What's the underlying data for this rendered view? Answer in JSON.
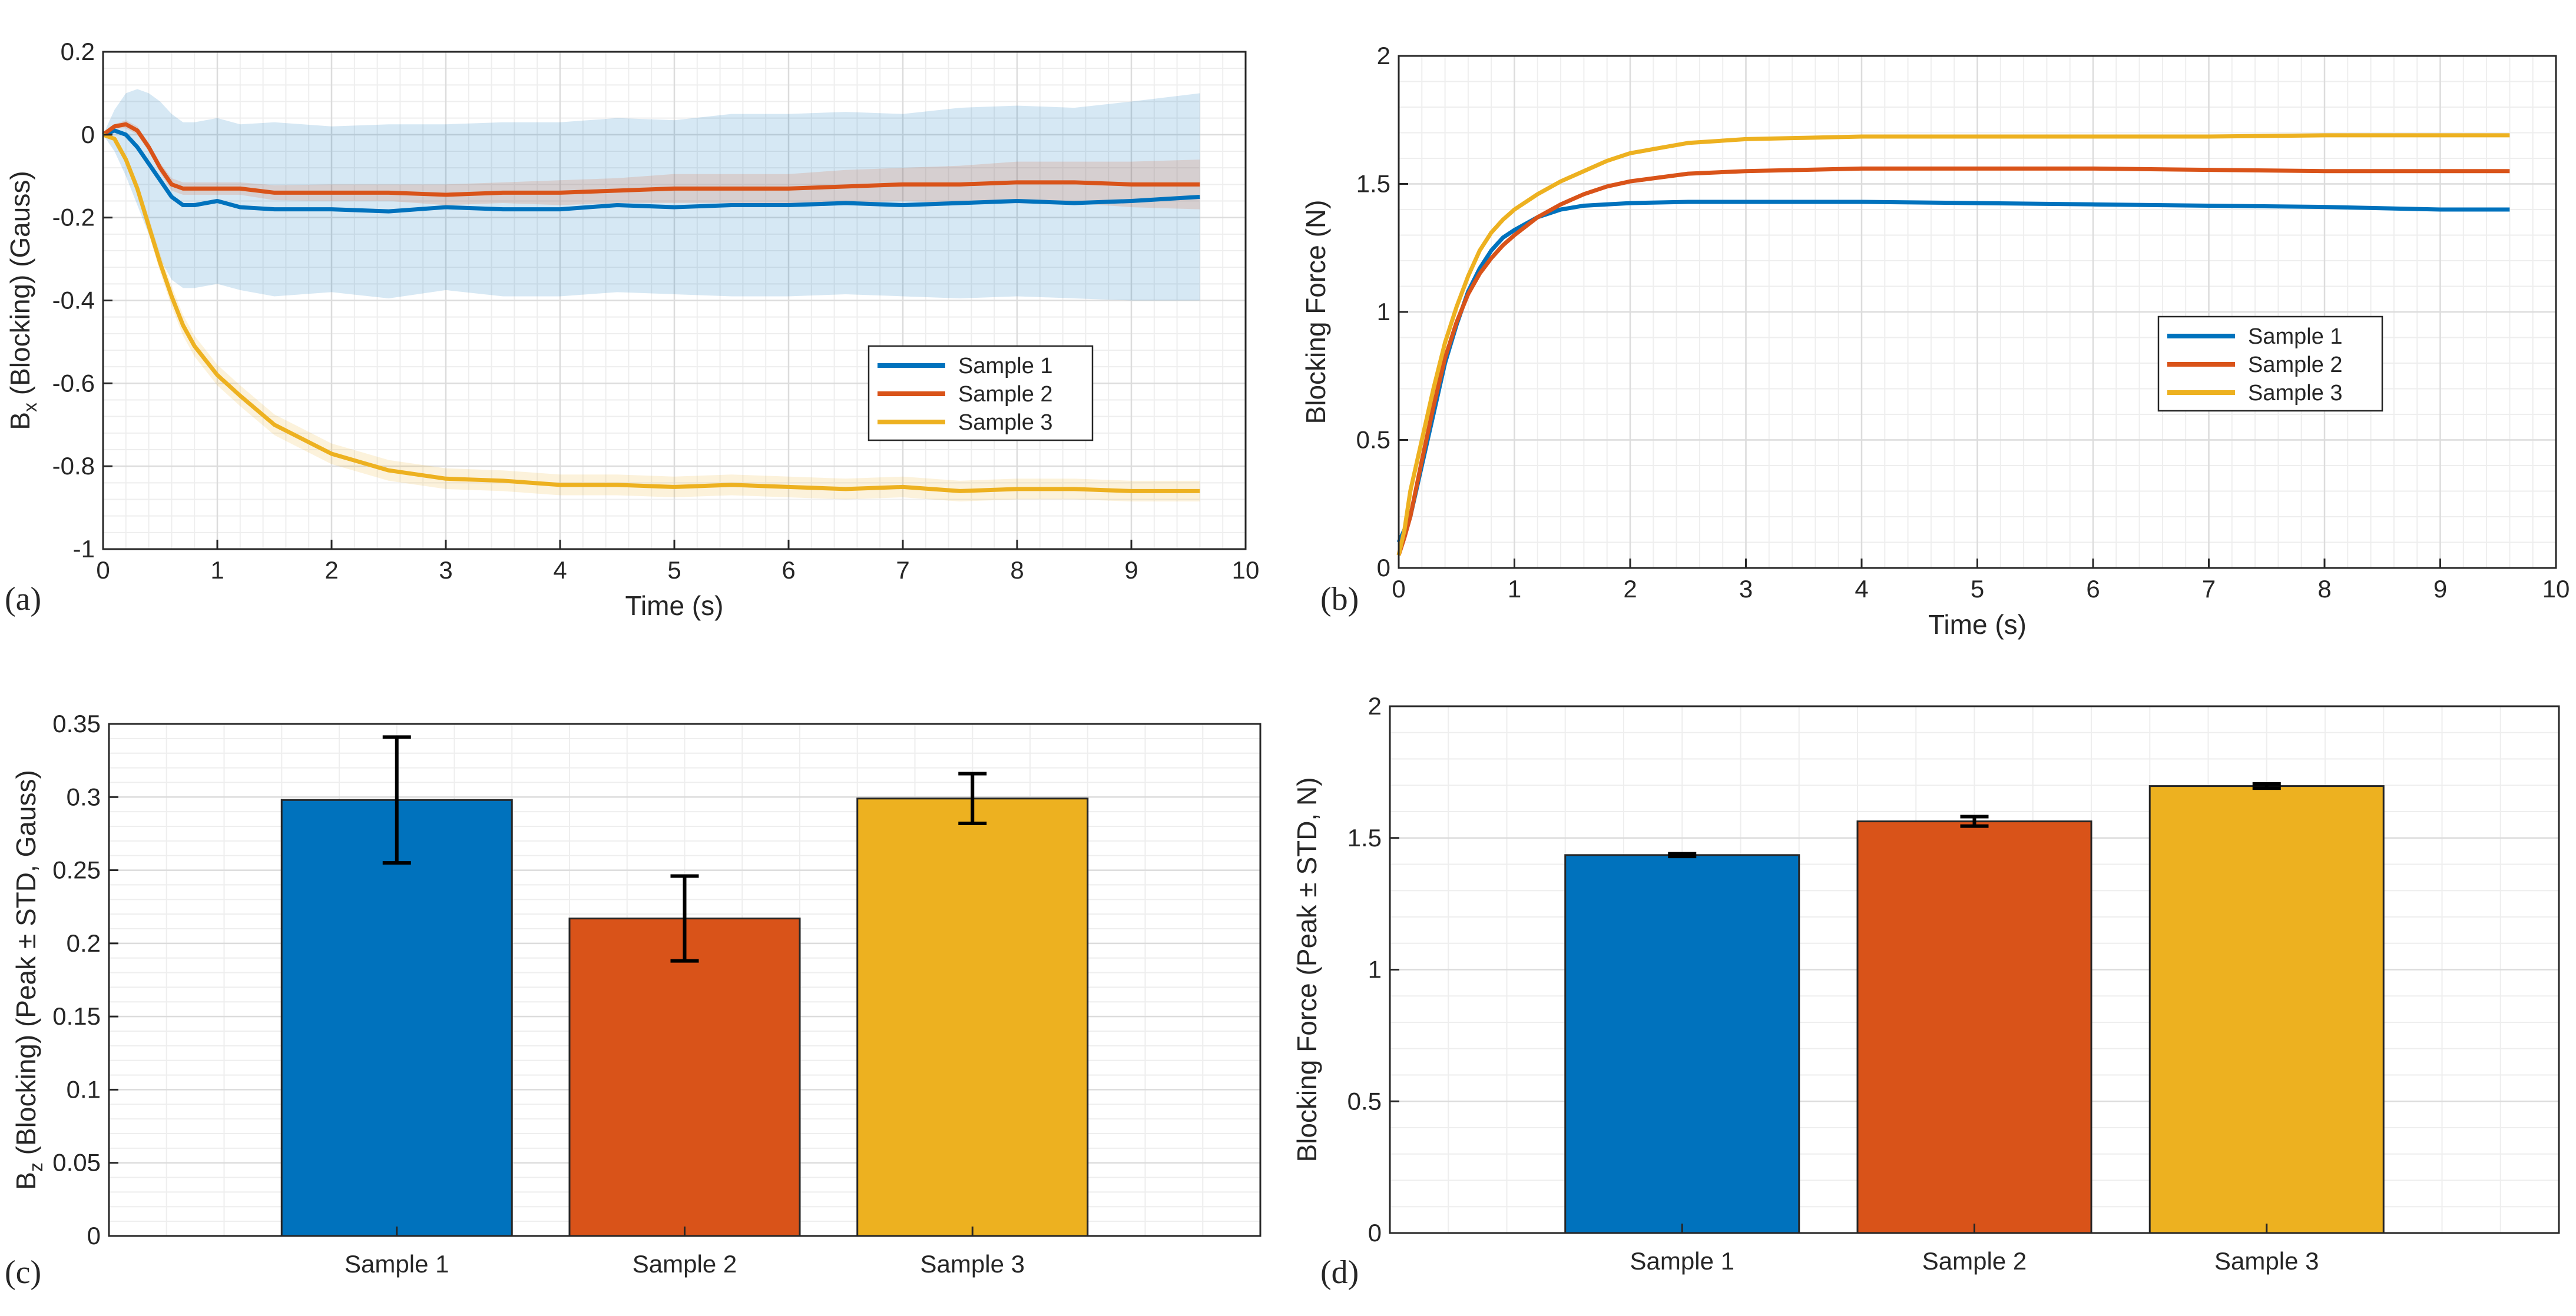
{
  "figure": {
    "panel_labels": [
      "(a)",
      "(b)",
      "(c)",
      "(d)"
    ],
    "colors": {
      "sample1": "#0072BD",
      "sample2": "#D95319",
      "sample3": "#EDB120",
      "grid_major": "#dcdcdc",
      "grid_minor": "#eeeeee",
      "axis": "#262626"
    }
  },
  "chart_data": [
    {
      "id": "a",
      "type": "line",
      "xlabel": "Time (s)",
      "ylabel": "B_x (Blocking) (Gauss)",
      "ylabel_base": "B",
      "ylabel_sub": "x",
      "ylabel_rest": " (Blocking) (Gauss)",
      "xlim": [
        0,
        10
      ],
      "ylim": [
        -1,
        0.2
      ],
      "xticks": [
        0,
        1,
        2,
        3,
        4,
        5,
        6,
        7,
        8,
        9,
        10
      ],
      "yticks": [
        -1,
        -0.8,
        -0.6,
        -0.4,
        -0.2,
        0,
        0.2
      ],
      "ytick_labels": [
        "-1",
        "-0.8",
        "-0.6",
        "-0.4",
        "-0.2",
        "0",
        "0.2"
      ],
      "grid": true,
      "legend": "center-right",
      "series": [
        {
          "name": "Sample 1",
          "color": "#0072BD",
          "x": [
            0,
            0.1,
            0.2,
            0.3,
            0.4,
            0.5,
            0.6,
            0.7,
            0.8,
            1.0,
            1.2,
            1.5,
            2.0,
            2.5,
            3.0,
            3.5,
            4.0,
            4.5,
            5.0,
            5.5,
            6.0,
            6.5,
            7.0,
            7.5,
            8.0,
            8.5,
            9.0,
            9.6
          ],
          "y": [
            0,
            0.01,
            0.0,
            -0.03,
            -0.07,
            -0.11,
            -0.15,
            -0.17,
            -0.17,
            -0.16,
            -0.175,
            -0.18,
            -0.18,
            -0.185,
            -0.175,
            -0.18,
            -0.18,
            -0.17,
            -0.175,
            -0.17,
            -0.17,
            -0.165,
            -0.17,
            -0.165,
            -0.16,
            -0.165,
            -0.16,
            -0.15
          ],
          "band": [
            0,
            0.05,
            0.1,
            0.14,
            0.17,
            0.19,
            0.2,
            0.2,
            0.2,
            0.2,
            0.2,
            0.21,
            0.2,
            0.21,
            0.2,
            0.21,
            0.21,
            0.21,
            0.21,
            0.22,
            0.22,
            0.22,
            0.22,
            0.23,
            0.23,
            0.23,
            0.24,
            0.25
          ]
        },
        {
          "name": "Sample 2",
          "color": "#D95319",
          "x": [
            0,
            0.1,
            0.2,
            0.3,
            0.4,
            0.5,
            0.6,
            0.7,
            0.8,
            1.0,
            1.2,
            1.5,
            2.0,
            2.5,
            3.0,
            3.5,
            4.0,
            4.5,
            5.0,
            5.5,
            6.0,
            6.5,
            7.0,
            7.5,
            8.0,
            8.5,
            9.0,
            9.6
          ],
          "y": [
            0,
            0.02,
            0.025,
            0.01,
            -0.03,
            -0.08,
            -0.12,
            -0.13,
            -0.13,
            -0.13,
            -0.13,
            -0.14,
            -0.14,
            -0.14,
            -0.145,
            -0.14,
            -0.14,
            -0.135,
            -0.13,
            -0.13,
            -0.13,
            -0.125,
            -0.12,
            -0.12,
            -0.115,
            -0.115,
            -0.12,
            -0.12
          ],
          "band": [
            0,
            0.005,
            0.01,
            0.01,
            0.01,
            0.012,
            0.015,
            0.015,
            0.015,
            0.015,
            0.015,
            0.018,
            0.02,
            0.02,
            0.025,
            0.025,
            0.03,
            0.03,
            0.035,
            0.035,
            0.035,
            0.04,
            0.04,
            0.045,
            0.05,
            0.05,
            0.055,
            0.06
          ]
        },
        {
          "name": "Sample 3",
          "color": "#EDB120",
          "x": [
            0,
            0.1,
            0.2,
            0.3,
            0.4,
            0.5,
            0.6,
            0.7,
            0.8,
            1.0,
            1.2,
            1.5,
            2.0,
            2.5,
            3.0,
            3.5,
            4.0,
            4.5,
            5.0,
            5.5,
            6.0,
            6.5,
            7.0,
            7.5,
            8.0,
            8.5,
            9.0,
            9.6
          ],
          "y": [
            0,
            -0.01,
            -0.06,
            -0.13,
            -0.22,
            -0.31,
            -0.39,
            -0.46,
            -0.51,
            -0.58,
            -0.63,
            -0.7,
            -0.77,
            -0.81,
            -0.83,
            -0.835,
            -0.845,
            -0.845,
            -0.85,
            -0.845,
            -0.85,
            -0.855,
            -0.85,
            -0.86,
            -0.855,
            -0.855,
            -0.86,
            -0.86
          ],
          "band": [
            0,
            0.005,
            0.01,
            0.015,
            0.02,
            0.022,
            0.025,
            0.025,
            0.025,
            0.025,
            0.025,
            0.025,
            0.025,
            0.025,
            0.025,
            0.025,
            0.025,
            0.025,
            0.025,
            0.025,
            0.025,
            0.025,
            0.025,
            0.025,
            0.025,
            0.025,
            0.025,
            0.025
          ]
        }
      ]
    },
    {
      "id": "b",
      "type": "line",
      "xlabel": "Time (s)",
      "ylabel": "Blocking Force (N)",
      "xlim": [
        0,
        10
      ],
      "ylim": [
        0,
        2
      ],
      "xticks": [
        0,
        1,
        2,
        3,
        4,
        5,
        6,
        7,
        8,
        9,
        10
      ],
      "yticks": [
        0,
        0.5,
        1,
        1.5,
        2
      ],
      "ytick_labels": [
        "0",
        "0.5",
        "1",
        "1.5",
        "2"
      ],
      "grid": true,
      "legend": "center-right",
      "series": [
        {
          "name": "Sample 1",
          "color": "#0072BD",
          "x": [
            0,
            0.05,
            0.1,
            0.2,
            0.3,
            0.4,
            0.5,
            0.6,
            0.7,
            0.8,
            0.9,
            1.0,
            1.2,
            1.4,
            1.6,
            1.8,
            2.0,
            2.5,
            3.0,
            3.5,
            4.0,
            5.0,
            6.0,
            7.0,
            8.0,
            9.0,
            9.6
          ],
          "y": [
            0.1,
            0.15,
            0.2,
            0.4,
            0.6,
            0.8,
            0.95,
            1.08,
            1.17,
            1.24,
            1.29,
            1.32,
            1.37,
            1.4,
            1.415,
            1.42,
            1.425,
            1.43,
            1.43,
            1.43,
            1.43,
            1.425,
            1.42,
            1.415,
            1.41,
            1.4,
            1.4
          ]
        },
        {
          "name": "Sample 2",
          "color": "#D95319",
          "x": [
            0,
            0.05,
            0.1,
            0.2,
            0.3,
            0.4,
            0.5,
            0.6,
            0.7,
            0.8,
            0.9,
            1.0,
            1.2,
            1.4,
            1.6,
            1.8,
            2.0,
            2.5,
            3.0,
            3.5,
            4.0,
            5.0,
            6.0,
            7.0,
            8.0,
            9.0,
            9.6
          ],
          "y": [
            0.05,
            0.12,
            0.2,
            0.42,
            0.63,
            0.82,
            0.96,
            1.07,
            1.15,
            1.21,
            1.26,
            1.3,
            1.37,
            1.42,
            1.46,
            1.49,
            1.51,
            1.54,
            1.55,
            1.555,
            1.56,
            1.56,
            1.56,
            1.555,
            1.55,
            1.55,
            1.55
          ]
        },
        {
          "name": "Sample 3",
          "color": "#EDB120",
          "x": [
            0,
            0.05,
            0.1,
            0.2,
            0.3,
            0.4,
            0.5,
            0.6,
            0.7,
            0.8,
            0.9,
            1.0,
            1.2,
            1.4,
            1.6,
            1.8,
            2.0,
            2.5,
            3.0,
            3.5,
            4.0,
            5.0,
            6.0,
            7.0,
            8.0,
            9.0,
            9.6
          ],
          "y": [
            0.05,
            0.15,
            0.3,
            0.5,
            0.7,
            0.88,
            1.02,
            1.14,
            1.24,
            1.31,
            1.36,
            1.4,
            1.46,
            1.51,
            1.55,
            1.59,
            1.62,
            1.66,
            1.675,
            1.68,
            1.685,
            1.685,
            1.685,
            1.685,
            1.69,
            1.69,
            1.69
          ]
        }
      ]
    },
    {
      "id": "c",
      "type": "bar",
      "categories": [
        "Sample 1",
        "Sample 2",
        "Sample 3"
      ],
      "values": [
        0.298,
        0.217,
        0.299
      ],
      "errors": [
        0.043,
        0.029,
        0.017
      ],
      "colors": [
        "#0072BD",
        "#D95319",
        "#EDB120"
      ],
      "ylabel": "B_z (Blocking) (Peak ± STD, Gauss)",
      "ylabel_base": "B",
      "ylabel_sub": "z",
      "ylabel_rest": " (Blocking) (Peak ± STD, Gauss)",
      "xlim": [
        0,
        4
      ],
      "ylim": [
        0,
        0.35
      ],
      "yticks": [
        0,
        0.05,
        0.1,
        0.15,
        0.2,
        0.25,
        0.3,
        0.35
      ],
      "ytick_labels": [
        "0",
        "0.05",
        "0.1",
        "0.15",
        "0.2",
        "0.25",
        "0.3",
        "0.35"
      ],
      "grid": true
    },
    {
      "id": "d",
      "type": "bar",
      "categories": [
        "Sample 1",
        "Sample 2",
        "Sample 3"
      ],
      "values": [
        1.435,
        1.563,
        1.697
      ],
      "errors": [
        0.005,
        0.018,
        0.008
      ],
      "colors": [
        "#0072BD",
        "#D95319",
        "#EDB120"
      ],
      "ylabel": "Blocking Force (Peak ± STD, N)",
      "xlim": [
        0,
        4
      ],
      "ylim": [
        0,
        2
      ],
      "yticks": [
        0,
        0.5,
        1,
        1.5,
        2
      ],
      "ytick_labels": [
        "0",
        "0.5",
        "1",
        "1.5",
        "2"
      ],
      "grid": true
    }
  ]
}
